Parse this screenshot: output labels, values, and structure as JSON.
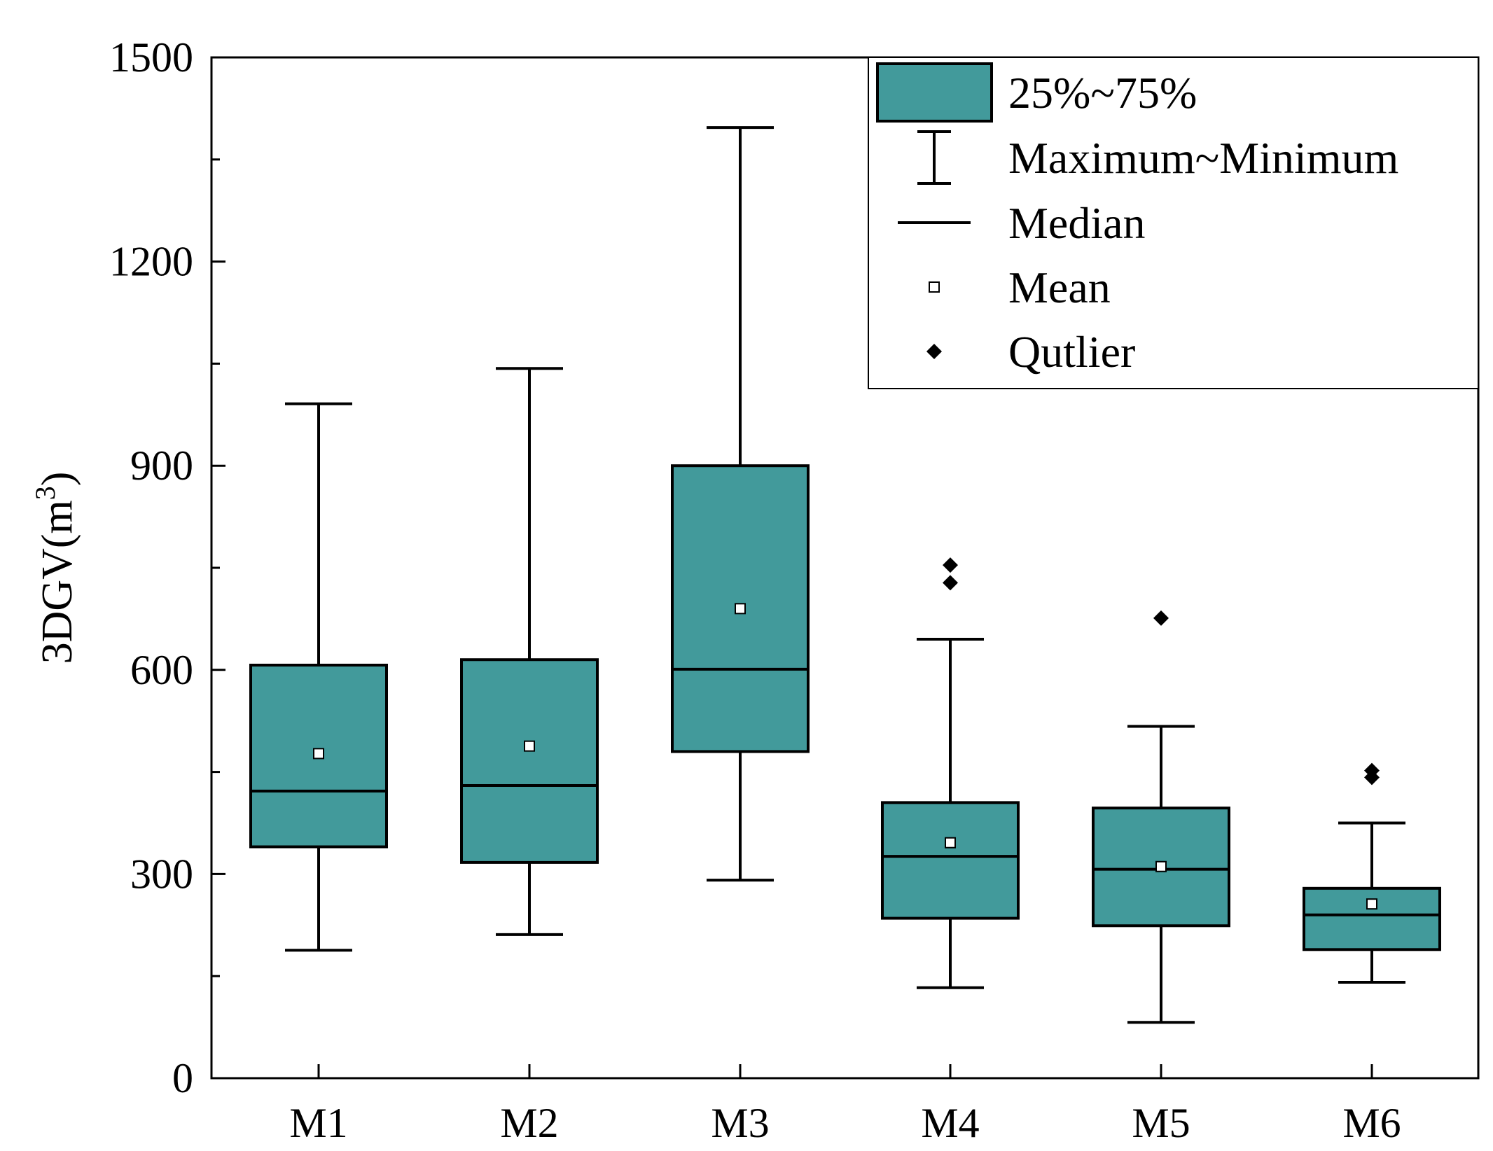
{
  "chart_data": {
    "type": "boxplot",
    "title": "",
    "xlabel": "",
    "ylabel_main": "3DGV(m",
    "ylabel_sup": "3",
    "ylabel_close": ")",
    "ylim": [
      0,
      1500
    ],
    "yticks": [
      0,
      300,
      600,
      900,
      1200,
      1500
    ],
    "yticks_minor": [
      150,
      450,
      750,
      1050,
      1350
    ],
    "categories": [
      "M1",
      "M2",
      "M3",
      "M4",
      "M5",
      "M6"
    ],
    "series": [
      {
        "name": "M1",
        "min": 188,
        "q1": 340,
        "median": 422,
        "q3": 607,
        "max": 991,
        "mean": 477,
        "outliers": []
      },
      {
        "name": "M2",
        "min": 211,
        "q1": 317,
        "median": 430,
        "q3": 615,
        "max": 1043,
        "mean": 488,
        "outliers": []
      },
      {
        "name": "M3",
        "min": 291,
        "q1": 480,
        "median": 601,
        "q3": 900,
        "max": 1397,
        "mean": 690,
        "outliers": []
      },
      {
        "name": "M4",
        "min": 133,
        "q1": 235,
        "median": 326,
        "q3": 405,
        "max": 645,
        "mean": 346,
        "outliers": [
          728,
          754
        ]
      },
      {
        "name": "M5",
        "min": 82,
        "q1": 224,
        "median": 307,
        "q3": 397,
        "max": 517,
        "mean": 311,
        "outliers": [
          676
        ]
      },
      {
        "name": "M6",
        "min": 141,
        "q1": 189,
        "median": 240,
        "q3": 279,
        "max": 375,
        "mean": 256,
        "outliers": [
          442,
          452
        ]
      }
    ],
    "legend": {
      "position": "top-right",
      "entries": [
        {
          "symbol": "box",
          "label": "25%~75%"
        },
        {
          "symbol": "whisker",
          "label": "Maximum~Minimum"
        },
        {
          "symbol": "line",
          "label": "Median"
        },
        {
          "symbol": "square",
          "label": "Mean"
        },
        {
          "symbol": "diamond",
          "label": "Qutlier"
        }
      ]
    },
    "colors": {
      "box_fill": "#429a9b",
      "stroke": "#000000",
      "mean_fill": "#ffffff",
      "outlier": "#000000"
    }
  }
}
